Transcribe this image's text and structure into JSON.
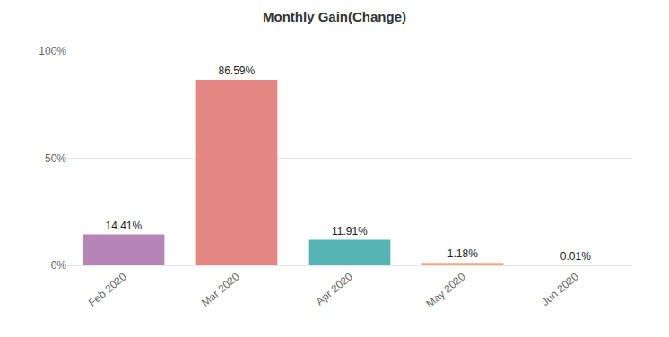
{
  "chart_data": {
    "type": "bar",
    "title": "Monthly Gain(Change)",
    "categories": [
      "Feb 2020",
      "Mar 2020",
      "Apr 2020",
      "May 2020",
      "Jun 2020"
    ],
    "values": [
      14.41,
      86.59,
      11.91,
      1.18,
      0.01
    ],
    "value_labels": [
      "14.41%",
      "86.59%",
      "11.91%",
      "1.18%",
      "0.01%"
    ],
    "colors": [
      "#b784b7",
      "#e48782",
      "#56b4b4",
      "#f6a57c",
      "#7cb5ec"
    ],
    "ylim": [
      0,
      100
    ],
    "yticks": [
      {
        "value": 0,
        "label": "0%"
      },
      {
        "value": 50,
        "label": "50%"
      },
      {
        "value": 100,
        "label": "100%"
      }
    ],
    "grid": true,
    "data_labels": true
  }
}
